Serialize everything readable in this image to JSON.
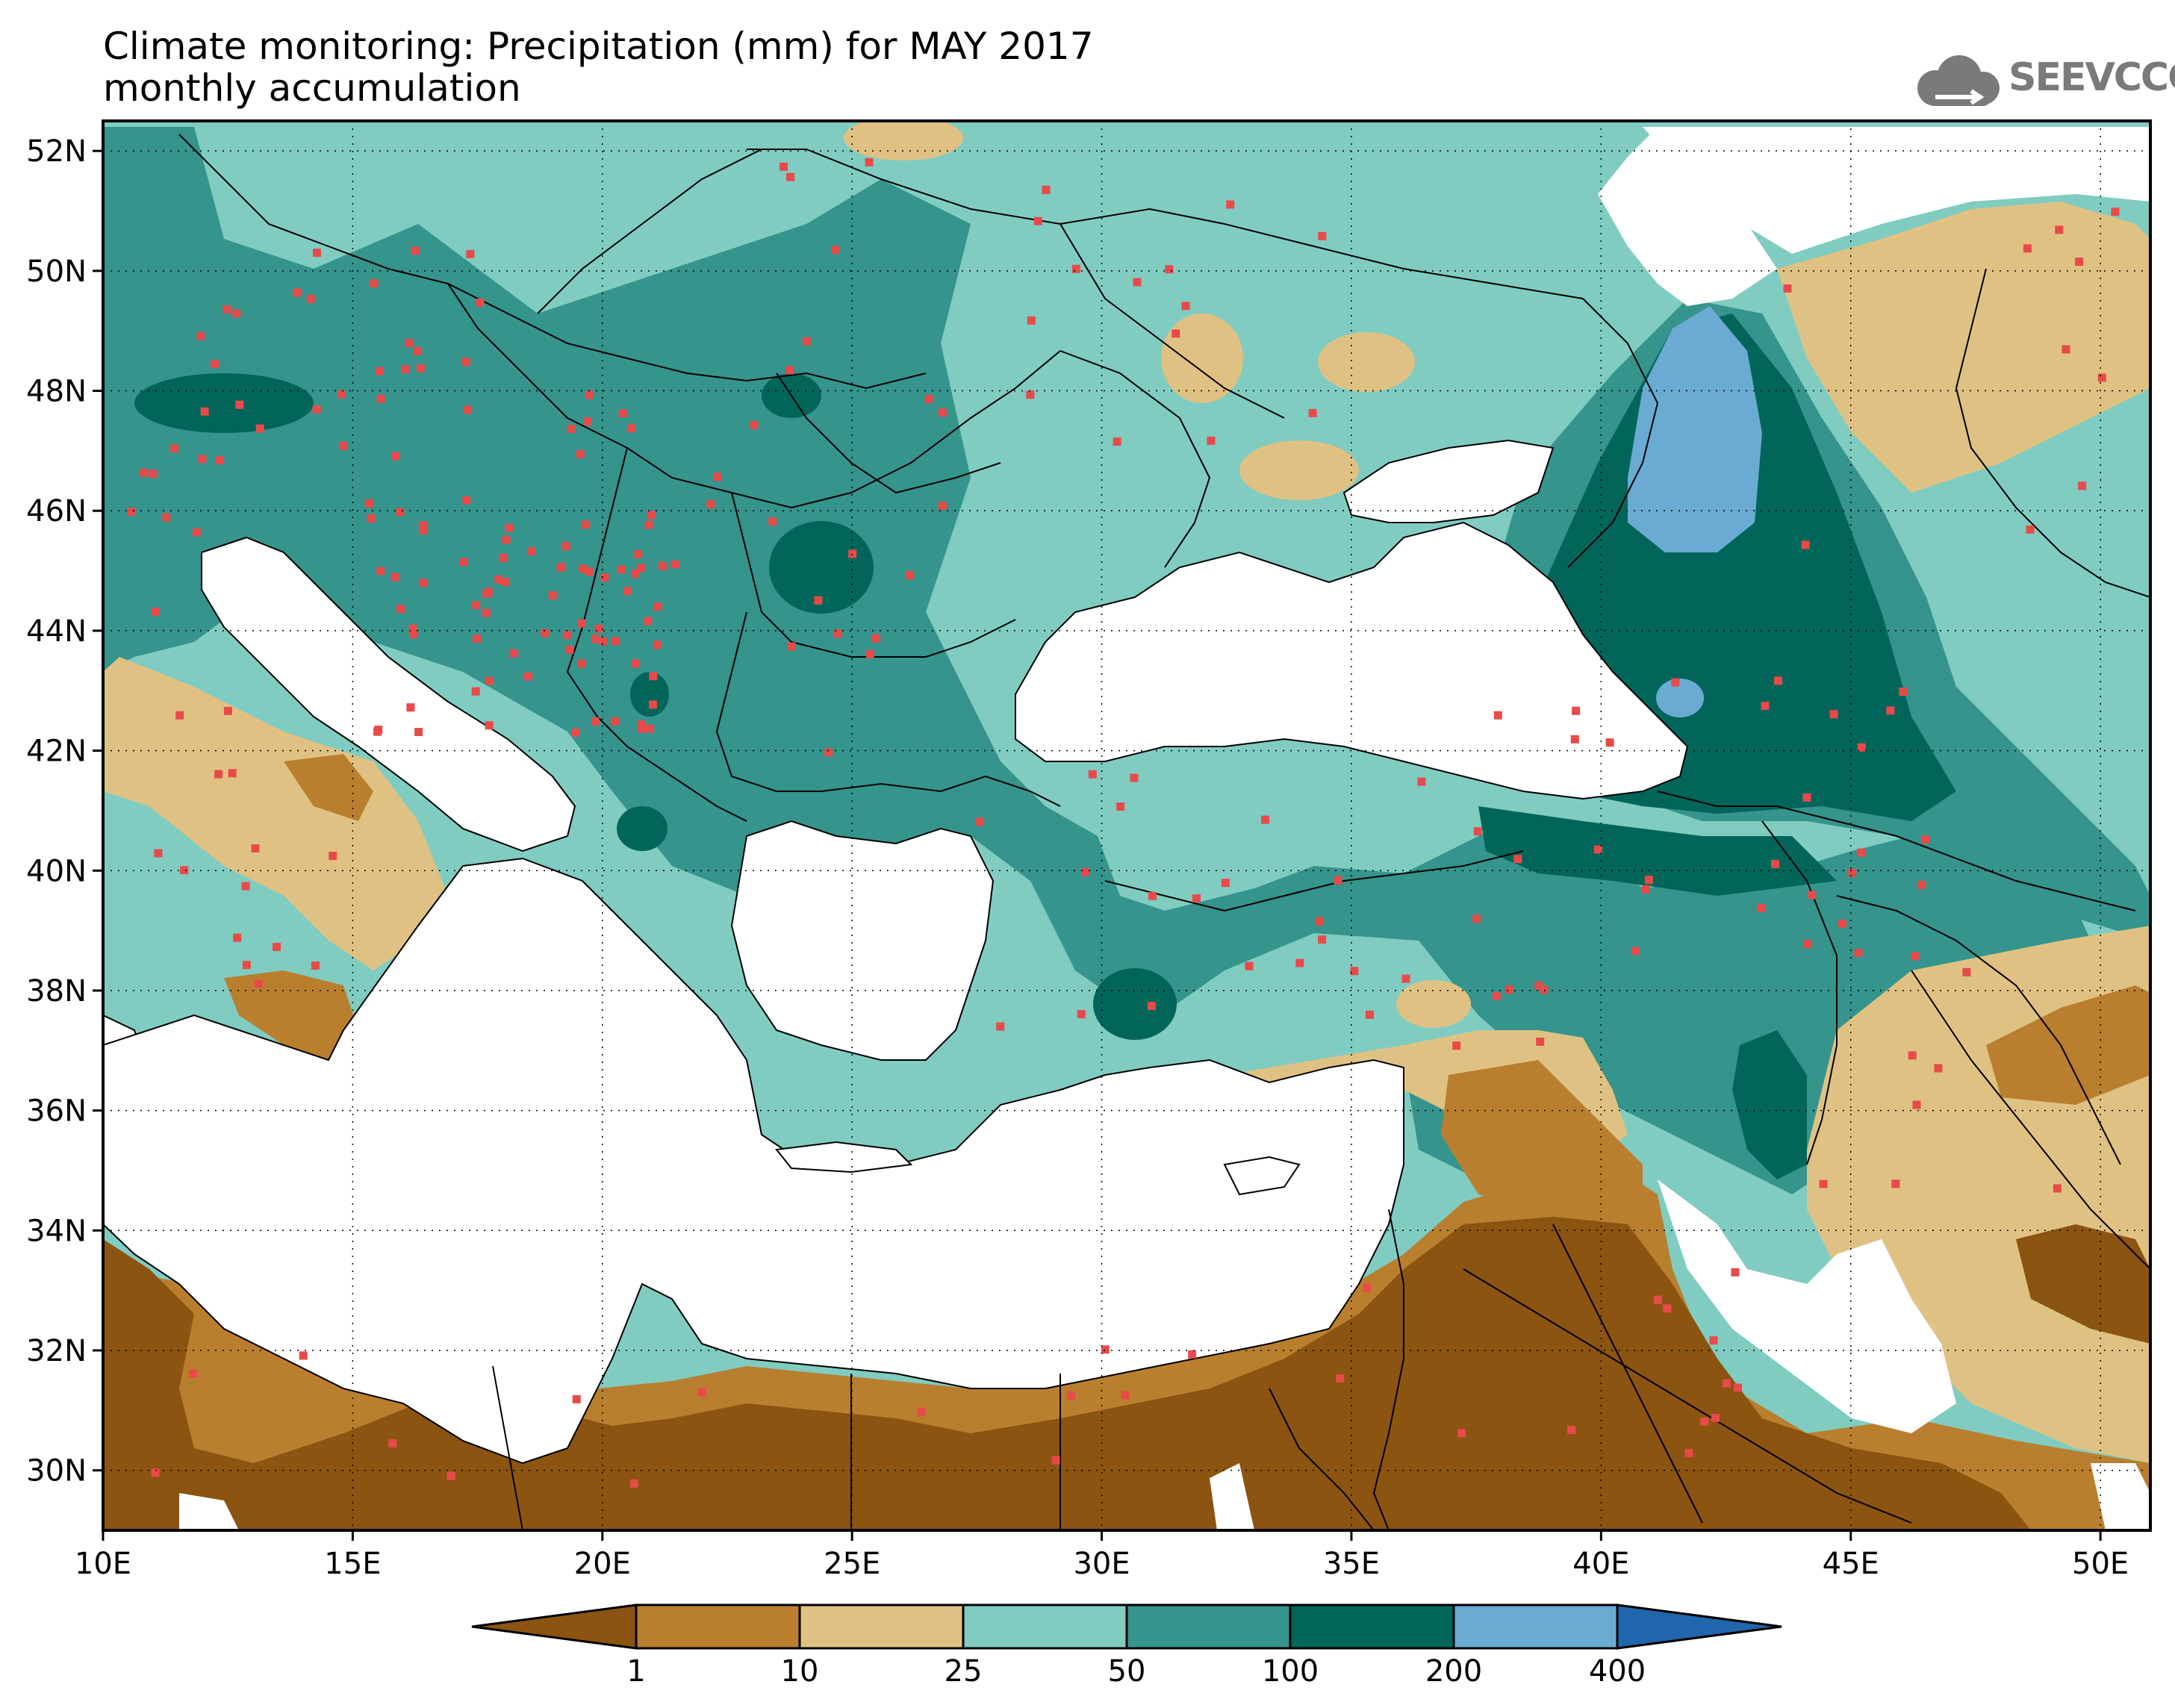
{
  "title": {
    "line1": "Climate monitoring: Precipitation (mm) for MAY 2017",
    "line2": "monthly accumulation"
  },
  "logo": {
    "text": "SEEVCCC",
    "icon": "cloud-icon"
  },
  "axes": {
    "lon_ticks": [
      "10E",
      "15E",
      "20E",
      "25E",
      "30E",
      "35E",
      "40E",
      "45E",
      "50E"
    ],
    "lat_ticks": [
      "52N",
      "50N",
      "48N",
      "46N",
      "44N",
      "42N",
      "40N",
      "38N",
      "36N",
      "34N",
      "32N",
      "30N"
    ],
    "lon_range": [
      10,
      51
    ],
    "lat_range": [
      29,
      52.5
    ]
  },
  "legend": {
    "colors": [
      "#8b5410",
      "#b97f2f",
      "#dfc283",
      "#80ccc1",
      "#35948c",
      "#016659",
      "#6aabd4",
      "#2166ac"
    ],
    "labels": [
      "1",
      "10",
      "25",
      "50",
      "100",
      "200",
      "400"
    ]
  }
}
